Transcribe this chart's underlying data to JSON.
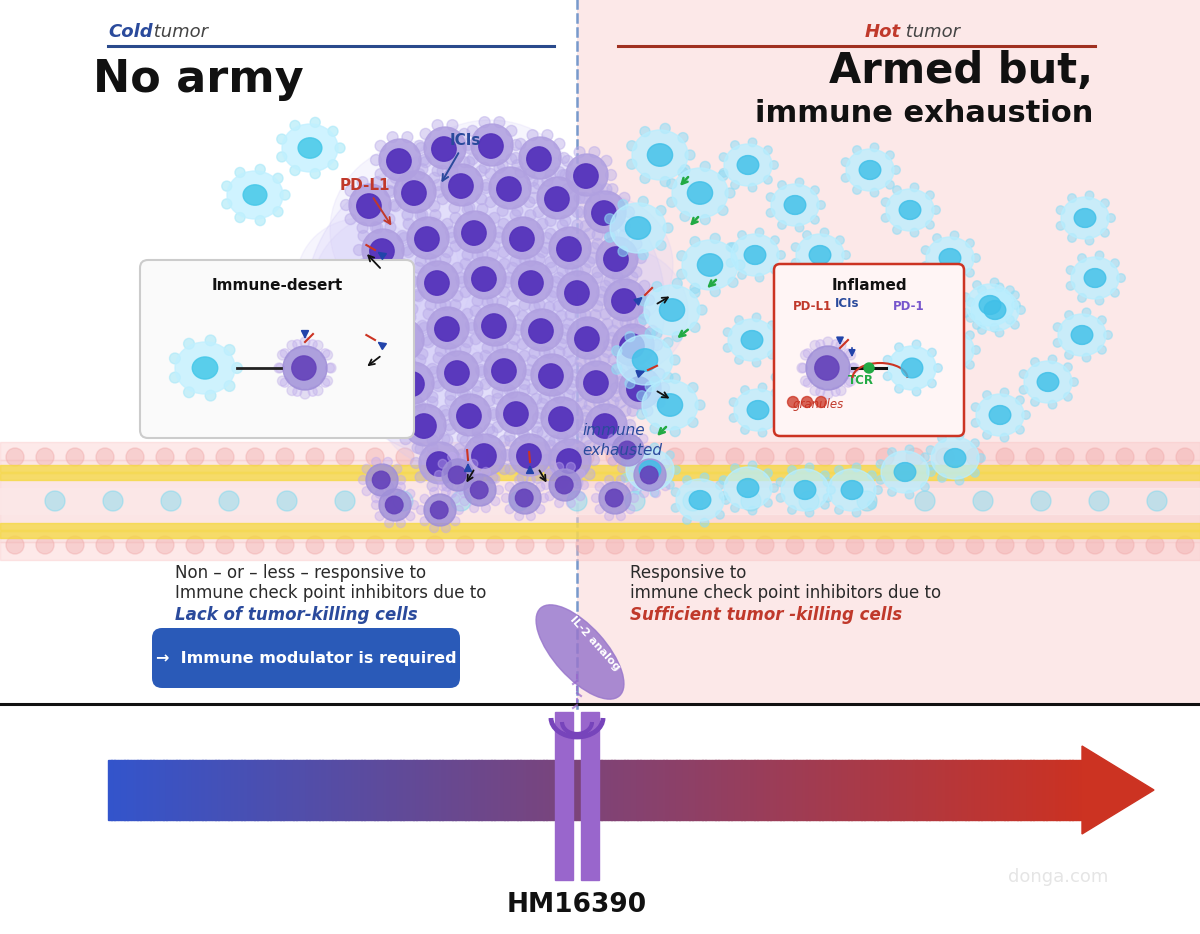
{
  "cold_title": "No army",
  "hot_title_line1": "Armed but,",
  "hot_title_line2": "immune exhaustion",
  "cold_line_color": "#2a4a8c",
  "hot_line_color": "#a03020",
  "cold_bg": "#ffffff",
  "hot_bg": "#fce8e8",
  "text_black": "#111111",
  "text_blue": "#2a4a9c",
  "text_red": "#c0392b",
  "text_green": "#27ae60",
  "hm_label": "HM16390",
  "il2_label": "IL-2 analog",
  "cold_desc_line1": "Non – or – less – responsive to",
  "cold_desc_line2": "Immune check point inhibitors due to",
  "cold_desc_line3": "Lack of tumor-killing cells",
  "cold_button_text": "→  Immune modulator is required",
  "hot_desc_line1": "Responsive to",
  "hot_desc_line2": "immune check point inhibitors due to",
  "hot_desc_line3": "Sufficient tumor -killing cells",
  "immune_desert_label": "Immune-desert",
  "inflamed_label": "Inflamed",
  "immune_exhausted_label": "immune\nexhausted",
  "icis_label": "ICIs",
  "pdl1_label": "PD-L1",
  "pdl1_label2": "PD-L1",
  "pdi1_label": "PD-1",
  "icis_label2": "ICIs",
  "tcr_label": "TCR",
  "granules_label": "granules",
  "watermark": "donga.com",
  "cold_tumor_bold": "Cold",
  "cold_tumor_rest": " tumor",
  "hot_tumor_bold": "Hot",
  "hot_tumor_rest": " tumor",
  "tumor_cell_body": "#9988dd",
  "tumor_cell_nucleus": "#5533bb",
  "tumor_glow_color": "#c8bef5",
  "cyan_cell_outer": "#b0eef8",
  "cyan_cell_inner": "#55ccee",
  "cyan_cell_nucleus": "#33aadd",
  "purple_exhausted_body": "#9988cc",
  "purple_exhausted_nucleus": "#6644aa",
  "vessel_outer_color": "#f5b0b0",
  "vessel_inner_color": "#fcd8d8",
  "vessel_yellow": "#f5d840",
  "vessel_bump_color": "#eeaaaa",
  "vessel_cell_color": "#88ddee",
  "button_color": "#2a5ab8",
  "il2_oval_color": "#9977cc",
  "receptor_color": "#9966cc",
  "arrow_start": "#3355cc",
  "arrow_end": "#cc3322"
}
